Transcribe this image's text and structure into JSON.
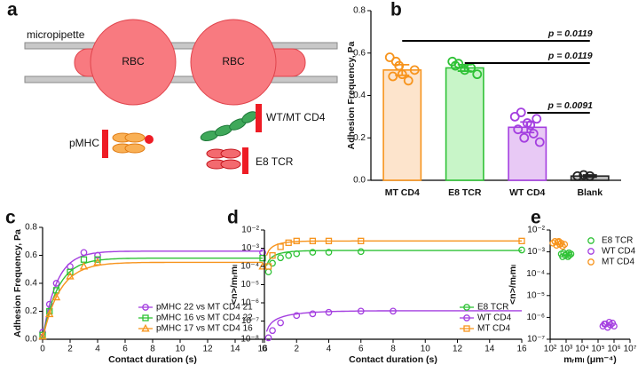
{
  "panel_labels": [
    "a",
    "b",
    "c",
    "d",
    "e"
  ],
  "diagram": {
    "micropipette": "micropipette",
    "cells": [
      "RBC",
      "RBC"
    ],
    "pmhc": "pMHC",
    "cd4": "WT/MT CD4",
    "tcr": "E8 TCR"
  },
  "chart_data": [
    {
      "type": "bar",
      "ylabel": "Adhesion Frequency, Pa",
      "categories": [
        "MT CD4",
        "E8 TCR",
        "WT CD4",
        "Blank"
      ],
      "values": [
        0.52,
        0.53,
        0.25,
        0.02
      ],
      "errors": [
        0.025,
        0.015,
        0.025,
        0.005
      ],
      "colors": [
        "#f7941d",
        "#2fc236",
        "#a43fe0",
        "#222222"
      ],
      "fill_colors": [
        "#fde4cc",
        "#c8f5c8",
        "#e8c9f5",
        "#bbbbbb"
      ],
      "points": [
        [
          0.58,
          0.56,
          0.5,
          0.47,
          0.52,
          0.49,
          0.54
        ],
        [
          0.56,
          0.55,
          0.52,
          0.53,
          0.5,
          0.54
        ],
        [
          0.3,
          0.32,
          0.27,
          0.22,
          0.18,
          0.24,
          0.2,
          0.26,
          0.29
        ],
        [
          0.02,
          0.025,
          0.02
        ]
      ],
      "ylim": [
        0,
        0.8
      ],
      "yticks": [
        {
          "value": 0,
          "label": "0.0"
        },
        0.2,
        0.4,
        0.6,
        0.8
      ],
      "comparisons": [
        {
          "between": [
            "MT CD4",
            "Blank"
          ],
          "label": "p = 0.0119"
        },
        {
          "between": [
            "E8 TCR",
            "Blank"
          ],
          "label": "p = 0.0119"
        },
        {
          "between": [
            "WT CD4",
            "Blank"
          ],
          "label": "p = 0.0091"
        }
      ]
    },
    {
      "type": "line",
      "xlabel": "Contact duration (s)",
      "ylabel": "Adhesion Frequency, Pa",
      "x": [
        0,
        0.5,
        1,
        2,
        3,
        4,
        16
      ],
      "series": [
        {
          "name": "pMHC 22 vs MT CD4 21",
          "color": "#a43fe0",
          "marker": "circle",
          "values": [
            0.05,
            0.25,
            0.4,
            0.52,
            0.62,
            0.6,
            0.62
          ],
          "fit": {
            "plateau": 0.63,
            "rate": 1.0
          }
        },
        {
          "name": "pMHC 16 vs MT CD4 22",
          "color": "#2fc236",
          "marker": "square",
          "values": [
            0.03,
            0.2,
            0.35,
            0.48,
            0.57,
            0.57,
            0.58
          ],
          "fit": {
            "plateau": 0.58,
            "rate": 0.9
          }
        },
        {
          "name": "pMHC 17 vs MT CD4 16",
          "color": "#f7941d",
          "marker": "triangle",
          "values": [
            0.02,
            0.18,
            0.3,
            0.45,
            0.52,
            0.55,
            0.52
          ],
          "fit": {
            "plateau": 0.55,
            "rate": 0.8
          }
        }
      ],
      "xlim": [
        0,
        16
      ],
      "xticks": [
        0,
        2,
        4,
        6,
        8,
        10,
        12,
        14,
        16
      ],
      "ylim": [
        0,
        0.8
      ],
      "yticks": [
        {
          "value": 0,
          "label": "0.0"
        },
        0.2,
        0.4,
        0.6,
        0.8
      ],
      "legend": "lower right"
    },
    {
      "type": "line",
      "xlabel": "Contact duration (s)",
      "ylabel": "<n>/mᵣmₗ",
      "yscale": "log",
      "series": [
        {
          "name": "E8 TCR",
          "color": "#2fc236",
          "marker": "circle",
          "x": [
            0.25,
            0.5,
            1,
            1.5,
            2,
            3,
            4,
            6,
            16
          ],
          "values": [
            5e-05,
            0.00015,
            0.0003,
            0.0004,
            0.0005,
            0.0006,
            0.0006,
            0.00065,
            0.0008
          ],
          "fit": {
            "plateau": 0.00075,
            "rate": 1.2
          }
        },
        {
          "name": "WT CD4",
          "color": "#a43fe0",
          "marker": "circle",
          "x": [
            0.25,
            0.5,
            1,
            2,
            3,
            4,
            6,
            8
          ],
          "values": [
            1.2e-08,
            3e-08,
            8e-08,
            2e-07,
            2.5e-07,
            3e-07,
            3.5e-07,
            3.5e-07
          ],
          "fit": {
            "plateau": 3.7e-07,
            "rate": 0.55
          }
        },
        {
          "name": "MT CD4",
          "color": "#f7941d",
          "marker": "square",
          "x": [
            0.25,
            0.5,
            1,
            1.5,
            2,
            3,
            4,
            6,
            16
          ],
          "values": [
            0.0001,
            0.0004,
            0.0012,
            0.002,
            0.0025,
            0.0025,
            0.0025,
            0.0025,
            0.0025
          ],
          "fit": {
            "plateau": 0.0025,
            "rate": 1.3
          }
        }
      ],
      "xlim": [
        0,
        16
      ],
      "xticks": [
        0,
        2,
        4,
        6,
        8,
        10,
        12,
        14,
        16
      ],
      "ylim": [
        1e-08,
        0.01
      ],
      "yticks": [
        {
          "value": 1e-08,
          "label": "10⁻⁸"
        },
        {
          "value": 1e-07,
          "label": "10⁻⁷"
        },
        {
          "value": 1e-06,
          "label": "10⁻⁶"
        },
        {
          "value": 1e-05,
          "label": "10⁻⁵"
        },
        {
          "value": 0.0001,
          "label": "10⁻⁴"
        },
        {
          "value": 0.001,
          "label": "10⁻³"
        },
        {
          "value": 0.01,
          "label": "10⁻²"
        }
      ],
      "legend": "lower right"
    },
    {
      "type": "scatter",
      "xlabel": "mᵣmₗ (μm⁻⁴)",
      "ylabel": "<n>/mᵣmₗ",
      "xscale": "log",
      "yscale": "log",
      "series": [
        {
          "name": "E8 TCR",
          "color": "#2fc236",
          "marker": "circle",
          "x": [
            500,
            700,
            900,
            1100,
            1300,
            1600,
            2000,
            600,
            1500
          ],
          "values": [
            0.0008,
            0.0009,
            0.0007,
            0.0008,
            0.0006,
            0.0007,
            0.0008,
            0.0006,
            0.0009
          ]
        },
        {
          "name": "WT CD4",
          "color": "#a43fe0",
          "marker": "circle",
          "x": [
            200000,
            300000,
            400000,
            500000,
            600000,
            800000,
            1000000,
            250000
          ],
          "values": [
            4e-07,
            5e-07,
            3.5e-07,
            6e-07,
            4.5e-07,
            5.5e-07,
            4e-07,
            5e-07
          ]
        },
        {
          "name": "MT CD4",
          "color": "#f7941d",
          "marker": "circle",
          "x": [
            150,
            200,
            250,
            300,
            400,
            500,
            600,
            350,
            800
          ],
          "values": [
            0.0025,
            0.003,
            0.002,
            0.0028,
            0.0022,
            0.0025,
            0.0018,
            0.003,
            0.0022
          ]
        }
      ],
      "xlim": [
        100,
        10000000
      ],
      "xticks": [
        {
          "value": 100,
          "label": "10²"
        },
        {
          "value": 1000,
          "label": "10³"
        },
        {
          "value": 10000,
          "label": "10⁴"
        },
        {
          "value": 100000,
          "label": "10⁵"
        },
        {
          "value": 1000000,
          "label": "10⁶"
        },
        {
          "value": 10000000,
          "label": "10⁷"
        }
      ],
      "ylim": [
        1e-07,
        0.01
      ],
      "yticks": [
        {
          "value": 1e-07,
          "label": "10⁻⁷"
        },
        {
          "value": 1e-06,
          "label": "10⁻⁶"
        },
        {
          "value": 1e-05,
          "label": "10⁻⁵"
        },
        {
          "value": 0.0001,
          "label": "10⁻⁴"
        },
        {
          "value": 0.001,
          "label": "10⁻³"
        },
        {
          "value": 0.01,
          "label": "10⁻²"
        }
      ],
      "legend": "upper right"
    }
  ]
}
